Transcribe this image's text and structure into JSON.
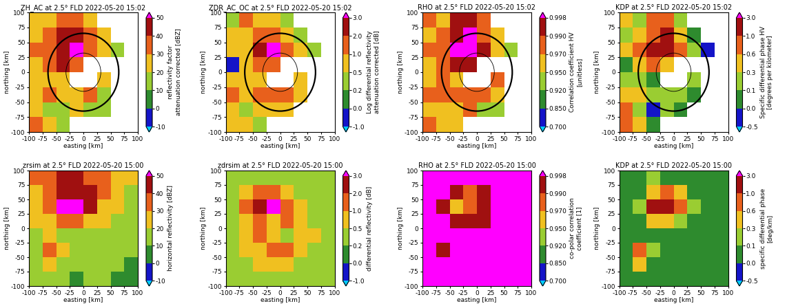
{
  "chart_data": [
    {
      "type": "heatmap",
      "title": "ZH_AC at 2.5° FLD 2022-05-20 15:02",
      "xlabel": "easting [km]",
      "ylabel": "northing [km]",
      "xlim": [
        -100,
        100
      ],
      "ylim": [
        -100,
        100
      ],
      "xticks": [
        -100,
        -75,
        -50,
        -25,
        0,
        25,
        50,
        75,
        100
      ],
      "yticks": [
        -100,
        -75,
        -50,
        -25,
        0,
        25,
        50,
        75,
        100
      ],
      "x_edges": [
        -100,
        -75,
        -50,
        -25,
        0,
        25,
        50,
        75,
        100
      ],
      "y_edges": [
        100,
        75,
        50,
        25,
        0,
        -25,
        -50,
        -75,
        -100
      ],
      "rings": [
        65,
        32
      ],
      "cells": [
        [
          28,
          22,
          35,
          38,
          25,
          null,
          null,
          null
        ],
        [
          25,
          30,
          40,
          42,
          30,
          20,
          null,
          null
        ],
        [
          30,
          35,
          45,
          52,
          35,
          25,
          15,
          null
        ],
        [
          28,
          30,
          42,
          38,
          null,
          null,
          null,
          null
        ],
        [
          20,
          25,
          20,
          null,
          null,
          22,
          null,
          null
        ],
        [
          25,
          30,
          28,
          25,
          30,
          15,
          null,
          null
        ],
        [
          22,
          18,
          15,
          20,
          12,
          10,
          null,
          null
        ],
        [
          30,
          22,
          15,
          null,
          null,
          null,
          null,
          null
        ]
      ],
      "colorbar": {
        "label": "reflectivity factor\nattenuation corrected [dBZ]",
        "range": [
          -10,
          50
        ],
        "ticks": [
          -10,
          0,
          10,
          20,
          30,
          40,
          50
        ]
      }
    },
    {
      "type": "heatmap",
      "title": "ZDR_AC_OC at 2.5° FLD 2022-05-20 15:02",
      "xlabel": "easting [km]",
      "ylabel": "northing [km]",
      "xlim": [
        -100,
        100
      ],
      "ylim": [
        -100,
        100
      ],
      "xticks": [
        -100,
        -75,
        -50,
        -25,
        0,
        25,
        50,
        75,
        100
      ],
      "yticks": [
        -100,
        -75,
        -50,
        -25,
        0,
        25,
        50,
        75,
        100
      ],
      "x_edges": [
        -100,
        -75,
        -50,
        -25,
        0,
        25,
        50,
        75,
        100
      ],
      "y_edges": [
        100,
        75,
        50,
        25,
        0,
        -25,
        -50,
        -75,
        -100
      ],
      "rings": [
        65,
        32
      ],
      "cells": [
        [
          0.3,
          1.0,
          0.6,
          0.8,
          0.3,
          null,
          null,
          null
        ],
        [
          0.6,
          0.8,
          1.0,
          1.5,
          0.6,
          0.3,
          null,
          null
        ],
        [
          0.8,
          0.6,
          2.0,
          3.2,
          1.0,
          0.6,
          0.4,
          null
        ],
        [
          -0.5,
          0.5,
          1.5,
          1.0,
          null,
          null,
          null,
          null
        ],
        [
          0.6,
          0.8,
          0.6,
          null,
          null,
          0.8,
          null,
          null
        ],
        [
          1.0,
          0.8,
          1.0,
          1.2,
          1.0,
          0.6,
          null,
          null
        ],
        [
          0.6,
          0.4,
          0.6,
          0.8,
          0.6,
          null,
          null,
          null
        ],
        [
          0.8,
          0.6,
          0.3,
          null,
          null,
          null,
          null,
          null
        ]
      ],
      "colorbar": {
        "label": "Log differential reflectivity\nattenuation corrected [dB]",
        "range": [
          -1.0,
          3.0
        ],
        "ticks": [
          -1.0,
          0.0,
          0.2,
          0.5,
          1.0,
          2.0,
          3.0
        ]
      }
    },
    {
      "type": "heatmap",
      "title": "RHO at 2.5° FLD 2022-05-20 15:02",
      "xlabel": "easting [km]",
      "ylabel": "northing [km]",
      "xlim": [
        -100,
        100
      ],
      "ylim": [
        -100,
        100
      ],
      "xticks": [
        -100,
        -75,
        -50,
        -25,
        0,
        25,
        50,
        75,
        100
      ],
      "yticks": [
        -100,
        -75,
        -50,
        -25,
        0,
        25,
        50,
        75,
        100
      ],
      "x_edges": [
        -100,
        -75,
        -50,
        -25,
        0,
        25,
        50,
        75,
        100
      ],
      "y_edges": [
        100,
        75,
        50,
        25,
        0,
        -25,
        -50,
        -75,
        -100
      ],
      "rings": [
        65,
        32
      ],
      "cells": [
        [
          0.98,
          0.96,
          0.99,
          0.995,
          0.97,
          null,
          null,
          null
        ],
        [
          0.96,
          0.98,
          0.995,
          0.999,
          0.98,
          0.95,
          null,
          null
        ],
        [
          0.97,
          0.98,
          0.999,
          0.999,
          0.99,
          0.96,
          0.93,
          null
        ],
        [
          0.95,
          0.97,
          0.995,
          0.99,
          null,
          null,
          null,
          null
        ],
        [
          0.96,
          0.97,
          0.96,
          null,
          null,
          0.97,
          null,
          null
        ],
        [
          0.97,
          0.98,
          0.98,
          0.97,
          0.98,
          0.95,
          null,
          null
        ],
        [
          0.96,
          0.95,
          0.96,
          0.97,
          0.94,
          0.93,
          null,
          null
        ],
        [
          0.97,
          0.96,
          0.95,
          null,
          null,
          null,
          null,
          null
        ]
      ],
      "colorbar": {
        "label": "Correlation coefficient HV\n[unitless]",
        "range": [
          0.7,
          0.998
        ],
        "ticks": [
          {
            "value": 0.7,
            "label": "0.700"
          },
          {
            "value": 0.85,
            "label": "0.850"
          },
          {
            "value": 0.92,
            "label": "0.920"
          },
          {
            "value": 0.95,
            "label": "0.950"
          },
          {
            "value": 0.97,
            "label": "0.970"
          },
          {
            "value": 0.99,
            "label": "0.990"
          },
          {
            "value": 0.998,
            "label": "0.998"
          }
        ]
      }
    },
    {
      "type": "heatmap",
      "title": "KDP at 2.5° FLD 2022-05-20 15:02",
      "xlabel": "easting [km]",
      "ylabel": "northing [km]",
      "xlim": [
        -100,
        100
      ],
      "ylim": [
        -100,
        100
      ],
      "xticks": [
        -100,
        -75,
        -50,
        -25,
        0,
        25,
        50,
        75,
        100
      ],
      "yticks": [
        -100,
        -75,
        -50,
        -25,
        0,
        25,
        50,
        75,
        100
      ],
      "x_edges": [
        -100,
        -75,
        -50,
        -25,
        0,
        25,
        50,
        75,
        100
      ],
      "y_edges": [
        100,
        75,
        50,
        25,
        0,
        -25,
        -50,
        -75,
        -100
      ],
      "rings": [
        65,
        32
      ],
      "cells": [
        [
          0.3,
          0.1,
          0.6,
          0.8,
          0.2,
          null,
          null,
          null
        ],
        [
          0.2,
          0.3,
          0.8,
          1.5,
          0.3,
          0.05,
          null,
          null
        ],
        [
          0.3,
          0.6,
          1.5,
          2.0,
          0.6,
          0.1,
          -0.2,
          null
        ],
        [
          0.05,
          0.3,
          0.6,
          0.3,
          null,
          null,
          null,
          null
        ],
        [
          0.1,
          0.2,
          0.05,
          null,
          null,
          0.1,
          null,
          null
        ],
        [
          0.3,
          0.3,
          0.2,
          0.1,
          0.1,
          0.05,
          null,
          null
        ],
        [
          0.6,
          0.1,
          -0.2,
          0.1,
          0.05,
          null,
          null,
          null
        ],
        [
          0.8,
          0.3,
          0.05,
          null,
          null,
          null,
          null,
          null
        ]
      ],
      "colorbar": {
        "label": "Specific differential phase HV\n[degrees per kilometer]",
        "range": [
          -0.5,
          3.0
        ],
        "ticks": [
          -0.5,
          0.0,
          0.1,
          0.3,
          0.6,
          1.0,
          3.0
        ]
      }
    },
    {
      "type": "heatmap",
      "title": "zrsim at 2.5° FLD 2022-05-20 15:00",
      "xlabel": "easting [km]",
      "ylabel": "northing [km]",
      "xlim": [
        -100,
        100
      ],
      "ylim": [
        -100,
        100
      ],
      "xticks": [
        -100,
        -75,
        -50,
        -25,
        0,
        25,
        50,
        75,
        100
      ],
      "yticks": [
        -100,
        -75,
        -50,
        -25,
        0,
        25,
        50,
        75,
        100
      ],
      "x_edges": [
        -100,
        -75,
        -50,
        -25,
        0,
        25,
        50,
        75,
        100
      ],
      "y_edges": [
        100,
        75,
        50,
        25,
        0,
        -25,
        -50,
        -75,
        -100
      ],
      "cells": [
        [
          30,
          35,
          40,
          45,
          38,
          30,
          25,
          20
        ],
        [
          28,
          38,
          45,
          48,
          42,
          30,
          22,
          18
        ],
        [
          25,
          35,
          52,
          50,
          40,
          28,
          20,
          15
        ],
        [
          20,
          25,
          30,
          35,
          28,
          20,
          15,
          12
        ],
        [
          15,
          20,
          18,
          15,
          12,
          15,
          12,
          10
        ],
        [
          18,
          35,
          22,
          15,
          15,
          12,
          15,
          10
        ],
        [
          15,
          20,
          15,
          12,
          10,
          12,
          10,
          8
        ],
        [
          12,
          15,
          10,
          8,
          10,
          10,
          8,
          5
        ]
      ],
      "colorbar": {
        "label": "horizontal reflectivity [dBZ]",
        "range": [
          -10,
          50
        ],
        "ticks": [
          -10,
          0,
          10,
          20,
          30,
          40,
          50
        ]
      }
    },
    {
      "type": "heatmap",
      "title": "zdrsim at 2.5° FLD 2022-05-20 15:00",
      "xlabel": "easting [km]",
      "ylabel": "northing [km]",
      "xlim": [
        -100,
        100
      ],
      "ylim": [
        -100,
        100
      ],
      "xticks": [
        -100,
        -75,
        -50,
        -25,
        0,
        25,
        50,
        75,
        100
      ],
      "yticks": [
        -100,
        -75,
        -50,
        -25,
        0,
        25,
        50,
        75,
        100
      ],
      "x_edges": [
        -100,
        -75,
        -50,
        -25,
        0,
        25,
        50,
        75,
        100
      ],
      "y_edges": [
        100,
        75,
        50,
        25,
        0,
        -25,
        -50,
        -75,
        -100
      ],
      "cells": [
        [
          0.3,
          0.3,
          0.3,
          0.3,
          0.3,
          0.3,
          0.3,
          0.3
        ],
        [
          0.3,
          0.6,
          1.5,
          1.5,
          0.8,
          0.3,
          0.3,
          0.3
        ],
        [
          0.3,
          1.2,
          2.5,
          3.5,
          1.5,
          0.6,
          0.3,
          0.3
        ],
        [
          0.3,
          0.6,
          1.2,
          0.8,
          1.0,
          0.6,
          0.3,
          0.3
        ],
        [
          0.3,
          0.6,
          1.5,
          0.6,
          0.3,
          0.8,
          0.6,
          0.3
        ],
        [
          0.3,
          0.8,
          0.6,
          1.2,
          1.5,
          0.8,
          0.3,
          0.3
        ],
        [
          0.3,
          0.3,
          0.6,
          0.8,
          0.6,
          0.3,
          0.3,
          0.3
        ],
        [
          0.3,
          0.3,
          0.3,
          0.3,
          0.3,
          0.3,
          0.3,
          0.3
        ]
      ],
      "colorbar": {
        "label": "differential reflectivity [dB]",
        "range": [
          -1.0,
          3.0
        ],
        "ticks": [
          -1.0,
          0.0,
          0.2,
          0.5,
          1.0,
          2.0,
          3.0
        ]
      }
    },
    {
      "type": "heatmap",
      "title": "RHO at 2.5° FLD 2022-05-20 15:00",
      "xlabel": "easting [km]",
      "ylabel": "northing [km]",
      "xlim": [
        -100,
        100
      ],
      "ylim": [
        -100,
        100
      ],
      "xticks": [
        -100,
        -75,
        -50,
        -25,
        0,
        25,
        50,
        75,
        100
      ],
      "yticks": [
        -100,
        -75,
        -50,
        -25,
        0,
        25,
        50,
        75,
        100
      ],
      "x_edges": [
        -100,
        -75,
        -50,
        -25,
        0,
        25,
        50,
        75,
        100
      ],
      "y_edges": [
        100,
        75,
        50,
        25,
        0,
        -25,
        -50,
        -75,
        -100
      ],
      "cells": [
        [
          0.999,
          0.999,
          0.999,
          0.999,
          0.999,
          0.999,
          0.999,
          0.999
        ],
        [
          0.999,
          0.999,
          0.995,
          0.98,
          0.995,
          0.999,
          0.999,
          0.999
        ],
        [
          0.999,
          0.99,
          0.96,
          0.98,
          0.99,
          0.999,
          0.999,
          0.999
        ],
        [
          0.999,
          0.999,
          0.995,
          0.99,
          0.995,
          0.999,
          0.999,
          0.999
        ],
        [
          0.999,
          0.999,
          0.999,
          0.999,
          0.999,
          0.999,
          0.999,
          0.999
        ],
        [
          0.999,
          0.995,
          0.999,
          0.999,
          0.999,
          0.999,
          0.999,
          0.999
        ],
        [
          0.999,
          0.999,
          0.999,
          0.999,
          0.999,
          0.999,
          0.999,
          0.999
        ],
        [
          0.999,
          0.999,
          0.999,
          0.999,
          0.999,
          0.999,
          0.999,
          0.999
        ]
      ],
      "colorbar": {
        "label": "co-polar correlation\ncoefficient [1]",
        "range": [
          0.7,
          0.998
        ],
        "ticks": [
          {
            "value": 0.7,
            "label": "0.700"
          },
          {
            "value": 0.85,
            "label": "0.850"
          },
          {
            "value": 0.92,
            "label": "0.920"
          },
          {
            "value": 0.95,
            "label": "0.950"
          },
          {
            "value": 0.97,
            "label": "0.970"
          },
          {
            "value": 0.99,
            "label": "0.990"
          },
          {
            "value": 0.998,
            "label": "0.998"
          }
        ]
      }
    },
    {
      "type": "heatmap",
      "title": "KDP at 2.5° FLD 2022-05-20 15:00",
      "xlabel": "easting [km]",
      "ylabel": "northing [km]",
      "xlim": [
        -100,
        100
      ],
      "ylim": [
        -100,
        100
      ],
      "xticks": [
        -100,
        -75,
        -50,
        -25,
        0,
        25,
        50,
        75,
        100
      ],
      "yticks": [
        -100,
        -75,
        -50,
        -25,
        0,
        25,
        50,
        75,
        100
      ],
      "x_edges": [
        -100,
        -75,
        -50,
        -25,
        0,
        25,
        50,
        75,
        100
      ],
      "y_edges": [
        100,
        75,
        50,
        25,
        0,
        -25,
        -50,
        -75,
        -100
      ],
      "cells": [
        [
          0.05,
          0.05,
          0.1,
          0.05,
          0.05,
          0.05,
          0.05,
          0.05
        ],
        [
          0.05,
          0.05,
          0.3,
          0.6,
          0.3,
          0.05,
          0.05,
          0.05
        ],
        [
          0.05,
          0.1,
          1.5,
          1.0,
          0.6,
          0.1,
          0.05,
          0.05
        ],
        [
          0.05,
          0.05,
          0.3,
          0.3,
          0.1,
          0.05,
          0.05,
          0.05
        ],
        [
          0.05,
          0.05,
          0.05,
          0.05,
          0.05,
          0.05,
          0.05,
          0.05
        ],
        [
          0.05,
          0.6,
          0.1,
          0.05,
          0.05,
          0.05,
          0.05,
          0.05
        ],
        [
          0.05,
          0.3,
          0.05,
          0.05,
          0.05,
          0.05,
          0.05,
          0.05
        ],
        [
          0.05,
          0.05,
          0.05,
          0.05,
          0.05,
          0.05,
          0.05,
          0.05
        ]
      ],
      "colorbar": {
        "label": "specific differential phase\n[deg/km]",
        "range": [
          -0.5,
          3.0
        ],
        "ticks": [
          -0.5,
          0.0,
          0.1,
          0.3,
          0.6,
          1.0,
          3.0
        ]
      }
    }
  ]
}
